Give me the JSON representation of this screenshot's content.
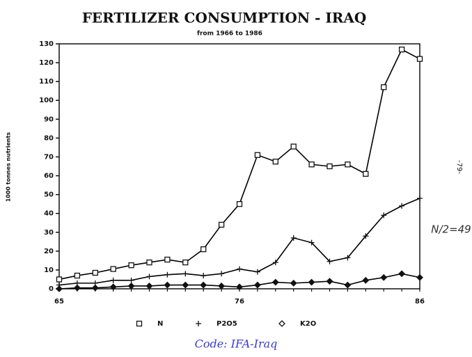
{
  "chart_data": {
    "type": "line",
    "title": "FERTILIZER CONSUMPTION  -  IRAQ",
    "subtitle": "from 1966 to 1986",
    "y_label": "1000 tonnes nutrients",
    "categories": [
      "65",
      null,
      null,
      null,
      null,
      null,
      null,
      null,
      null,
      null,
      "76",
      null,
      null,
      null,
      null,
      null,
      null,
      null,
      null,
      null,
      "86"
    ],
    "series": [
      {
        "name": "N",
        "color": "#000000",
        "marker": "square",
        "values": [
          5,
          7,
          8.5,
          10.5,
          12.5,
          14,
          15.5,
          14,
          21,
          34,
          45,
          71,
          67.5,
          75.5,
          66,
          65,
          66,
          61,
          107,
          127,
          122
        ]
      },
      {
        "name": "P2O5",
        "color": "#000000",
        "marker": "plus",
        "values": [
          2,
          3,
          3,
          4.5,
          4.5,
          6.5,
          7.5,
          8,
          7,
          8,
          10.5,
          9,
          14,
          27,
          24.5,
          14.5,
          16.5,
          28,
          39,
          44,
          48
        ]
      },
      {
        "name": "K2O",
        "color": "#000000",
        "marker": "diamond",
        "values": [
          0,
          0.5,
          0.5,
          1,
          1.5,
          1.5,
          2,
          2,
          2,
          1.5,
          1,
          2,
          3.5,
          3,
          3.5,
          4,
          2,
          4.5,
          6,
          8,
          6
        ]
      }
    ],
    "ylim": [
      0,
      130
    ],
    "yticks": [
      0,
      10,
      20,
      30,
      40,
      50,
      60,
      70,
      80,
      90,
      100,
      110,
      120,
      130
    ],
    "legend": "bottom",
    "annotations": [
      "N/2=49",
      "-79-"
    ],
    "caption": "Code: IFA-Iraq"
  }
}
